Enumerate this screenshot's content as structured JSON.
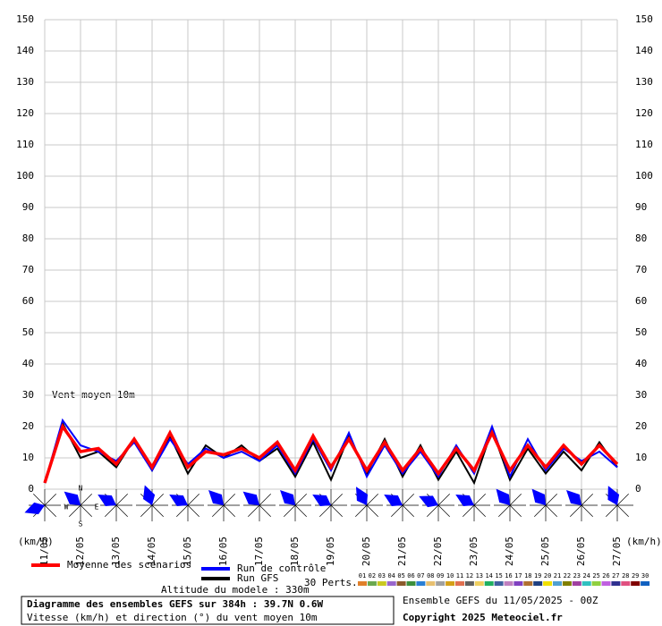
{
  "chart_data": {
    "type": "line",
    "annotation": "Vent moyen 10m",
    "y_unit_left": "(km/h)",
    "y_unit_right": "(km/h)",
    "x": [
      0,
      12,
      24,
      36,
      48,
      60,
      72,
      84,
      96,
      108,
      120,
      132,
      144,
      156,
      168,
      180,
      192,
      204,
      216,
      228,
      240,
      252,
      264,
      276,
      288,
      300,
      312,
      324,
      336,
      348,
      360,
      372,
      384
    ],
    "xlim": [
      0,
      384
    ],
    "xticks": [
      {
        "value": 0,
        "label": "11/05"
      },
      {
        "value": 24,
        "label": "12/05"
      },
      {
        "value": 48,
        "label": "13/05"
      },
      {
        "value": 72,
        "label": "14/05"
      },
      {
        "value": 96,
        "label": "15/05"
      },
      {
        "value": 120,
        "label": "16/05"
      },
      {
        "value": 144,
        "label": "17/05"
      },
      {
        "value": 168,
        "label": "18/05"
      },
      {
        "value": 192,
        "label": "19/05"
      },
      {
        "value": 216,
        "label": "20/05"
      },
      {
        "value": 240,
        "label": "21/05"
      },
      {
        "value": 264,
        "label": "22/05"
      },
      {
        "value": 288,
        "label": "23/05"
      },
      {
        "value": 312,
        "label": "24/05"
      },
      {
        "value": 336,
        "label": "25/05"
      },
      {
        "value": 360,
        "label": "26/05"
      },
      {
        "value": 384,
        "label": "27/05"
      }
    ],
    "ylim": [
      0,
      150
    ],
    "yticks": [
      0,
      10,
      20,
      30,
      40,
      50,
      60,
      70,
      80,
      90,
      100,
      110,
      120,
      130,
      140,
      150
    ],
    "grid": true,
    "series": [
      {
        "name": "Run GFS",
        "color": "#000000",
        "values": [
          2,
          21,
          10,
          12,
          7,
          16,
          6,
          17,
          5,
          14,
          10,
          14,
          9,
          13,
          4,
          15,
          3,
          17,
          5,
          16,
          4,
          14,
          3,
          12,
          2,
          19,
          3,
          13,
          5,
          12,
          6,
          15,
          7
        ]
      },
      {
        "name": "Run de contrôle",
        "color": "#0000ff",
        "values": [
          2,
          22,
          14,
          12,
          9,
          15,
          6,
          16,
          8,
          13,
          10,
          12,
          9,
          14,
          5,
          16,
          6,
          18,
          4,
          14,
          5,
          12,
          4,
          14,
          5,
          20,
          4,
          16,
          6,
          13,
          9,
          12,
          7
        ]
      },
      {
        "name": "Moyenne des scénarios",
        "color": "#ff0000",
        "values": [
          2,
          20,
          12,
          13,
          8,
          16,
          7,
          18,
          7,
          12,
          11,
          13,
          10,
          15,
          6,
          17,
          7,
          16,
          6,
          15,
          6,
          13,
          5,
          13,
          6,
          18,
          6,
          14,
          7,
          14,
          8,
          14,
          8
        ]
      }
    ],
    "perturbations_label": "30 Perts.",
    "perturbations": [
      {
        "name": "01",
        "color": "#e0802a"
      },
      {
        "name": "02",
        "color": "#6aa84f"
      },
      {
        "name": "03",
        "color": "#c9c920"
      },
      {
        "name": "04",
        "color": "#9966cc"
      },
      {
        "name": "05",
        "color": "#8b5a2b"
      },
      {
        "name": "06",
        "color": "#3c8f3c"
      },
      {
        "name": "07",
        "color": "#2a7fd4"
      },
      {
        "name": "08",
        "color": "#e8c070"
      },
      {
        "name": "09",
        "color": "#a0a0a0"
      },
      {
        "name": "10",
        "color": "#d4a017"
      },
      {
        "name": "11",
        "color": "#e07050"
      },
      {
        "name": "12",
        "color": "#606060"
      },
      {
        "name": "13",
        "color": "#f0d060"
      },
      {
        "name": "14",
        "color": "#20b060"
      },
      {
        "name": "15",
        "color": "#4060a0"
      },
      {
        "name": "16",
        "color": "#c080c0"
      },
      {
        "name": "17",
        "color": "#8040c0"
      },
      {
        "name": "18",
        "color": "#b07030"
      },
      {
        "name": "19",
        "color": "#204080"
      },
      {
        "name": "20",
        "color": "#f0e000"
      },
      {
        "name": "21",
        "color": "#50a0d0"
      },
      {
        "name": "22",
        "color": "#808000"
      },
      {
        "name": "23",
        "color": "#a040a0"
      },
      {
        "name": "24",
        "color": "#30c0c0"
      },
      {
        "name": "25",
        "color": "#90d040"
      },
      {
        "name": "26",
        "color": "#c060e0"
      },
      {
        "name": "27",
        "color": "#303090"
      },
      {
        "name": "28",
        "color": "#e05080"
      },
      {
        "name": "29",
        "color": "#800000"
      },
      {
        "name": "30",
        "color": "#1060c0"
      }
    ],
    "wind_direction_x": [
      0,
      24,
      48,
      72,
      96,
      120,
      144,
      168,
      192,
      216,
      240,
      264,
      288,
      312,
      336,
      360,
      384
    ],
    "wind_direction": [
      250,
      310,
      300,
      340,
      300,
      315,
      310,
      315,
      300,
      330,
      300,
      295,
      300,
      320,
      320,
      315,
      335
    ],
    "compass": [
      "N",
      "W",
      "E",
      "S"
    ],
    "altitude": "Altitude du modele : 330m",
    "title": "Diagramme des ensembles GEFS sur 384h : 39.7N 0.6W",
    "subtitle": "Vitesse (km/h) et direction (°) du vent moyen 10m",
    "run_info": "Ensemble GEFS du 11/05/2025 - 00Z",
    "copyright": "Copyright 2025 Meteociel.fr"
  }
}
